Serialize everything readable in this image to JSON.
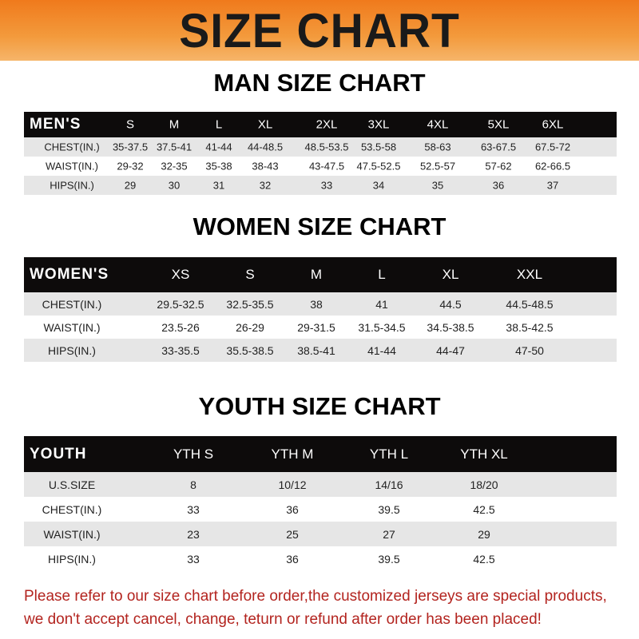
{
  "banner_title": "SIZE CHART",
  "men": {
    "title": "MAN SIZE CHART",
    "header": [
      "MEN'S",
      "S",
      "M",
      "L",
      "XL",
      "2XL",
      "3XL",
      "4XL",
      "5XL",
      "6XL"
    ],
    "rows": [
      [
        "CHEST(IN.)",
        "35-37.5",
        "37.5-41",
        "41-44",
        "44-48.5",
        "48.5-53.5",
        "53.5-58",
        "58-63",
        "63-67.5",
        "67.5-72"
      ],
      [
        "WAIST(IN.)",
        "29-32",
        "32-35",
        "35-38",
        "38-43",
        "43-47.5",
        "47.5-52.5",
        "52.5-57",
        "57-62",
        "62-66.5"
      ],
      [
        "HIPS(IN.)",
        "29",
        "30",
        "31",
        "32",
        "33",
        "34",
        "35",
        "36",
        "37"
      ]
    ]
  },
  "women": {
    "title": "WOMEN SIZE CHART",
    "header": [
      "WOMEN'S",
      "XS",
      "S",
      "M",
      "L",
      "XL",
      "XXL"
    ],
    "rows": [
      [
        "CHEST(IN.)",
        "29.5-32.5",
        "32.5-35.5",
        "38",
        "41",
        "44.5",
        "44.5-48.5"
      ],
      [
        "WAIST(IN.)",
        "23.5-26",
        "26-29",
        "29-31.5",
        "31.5-34.5",
        "34.5-38.5",
        "38.5-42.5"
      ],
      [
        "HIPS(IN.)",
        "33-35.5",
        "35.5-38.5",
        "38.5-41",
        "41-44",
        "44-47",
        "47-50"
      ]
    ]
  },
  "youth": {
    "title": "YOUTH SIZE CHART",
    "header": [
      "YOUTH",
      "YTH S",
      "YTH M",
      "YTH L",
      "YTH XL"
    ],
    "rows": [
      [
        "U.S.SIZE",
        "8",
        "10/12",
        "14/16",
        "18/20"
      ],
      [
        "CHEST(IN.)",
        "33",
        "36",
        "39.5",
        "42.5"
      ],
      [
        "WAIST(IN.)",
        "23",
        "25",
        "27",
        "29"
      ],
      [
        "HIPS(IN.)",
        "33",
        "36",
        "39.5",
        "42.5"
      ]
    ]
  },
  "note": [
    "Please refer to our size chart before order,the customized jerseys are special products,",
    "we don't accept cancel, change, teturn or refund after order has been placed!"
  ],
  "colors": {
    "banner": "#f07a1c",
    "header_row": "#0d0b0b",
    "note_text": "#b3241f"
  }
}
